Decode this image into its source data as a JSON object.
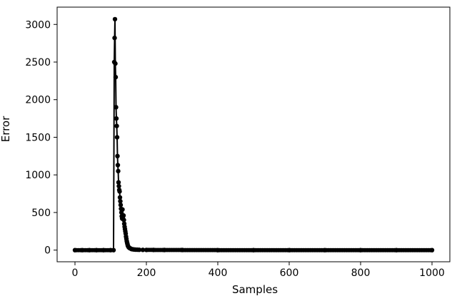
{
  "chart_data": {
    "type": "line",
    "title": "",
    "xlabel": "Samples",
    "ylabel": "Error",
    "xlim": [
      -50,
      1050
    ],
    "ylim": [
      -155,
      3230
    ],
    "xticks": [
      0,
      200,
      400,
      600,
      800,
      1000
    ],
    "xtick_labels": [
      "0",
      "200",
      "400",
      "600",
      "800",
      "1000"
    ],
    "yticks": [
      0,
      500,
      1000,
      1500,
      2000,
      2500,
      3000
    ],
    "ytick_labels": [
      "0",
      "500",
      "1000",
      "1500",
      "2000",
      "2500",
      "3000"
    ],
    "grid": false,
    "legend": "none",
    "colors": {
      "series": "#000000"
    },
    "series": [
      {
        "marker": "circle",
        "x": [
          0,
          20,
          40,
          60,
          80,
          100,
          108,
          110,
          111,
          112,
          113,
          114,
          115,
          116,
          117,
          118,
          119,
          120,
          121,
          122,
          123,
          124,
          125,
          126,
          127,
          128,
          129,
          130,
          131,
          132,
          133,
          134,
          135,
          136,
          137,
          138,
          139,
          140,
          141,
          142,
          143,
          144,
          145,
          146,
          147,
          148,
          149,
          150,
          152,
          154,
          156,
          158,
          160,
          163,
          166,
          170,
          175,
          180,
          190,
          200,
          220,
          250,
          300,
          400,
          500,
          600,
          700,
          800,
          900,
          1000
        ],
        "values": [
          0,
          0,
          0,
          0,
          0,
          0,
          0,
          2500,
          2820,
          3070,
          2480,
          2300,
          1900,
          1750,
          1650,
          1500,
          1250,
          1130,
          1050,
          900,
          850,
          800,
          780,
          700,
          650,
          600,
          550,
          500,
          450,
          420,
          540,
          430,
          410,
          460,
          400,
          350,
          310,
          280,
          250,
          220,
          180,
          150,
          120,
          100,
          80,
          60,
          50,
          40,
          30,
          25,
          20,
          15,
          12,
          10,
          8,
          6,
          5,
          4,
          3,
          2,
          2,
          1,
          1,
          0,
          0,
          0,
          0,
          0,
          0,
          0
        ]
      }
    ]
  }
}
